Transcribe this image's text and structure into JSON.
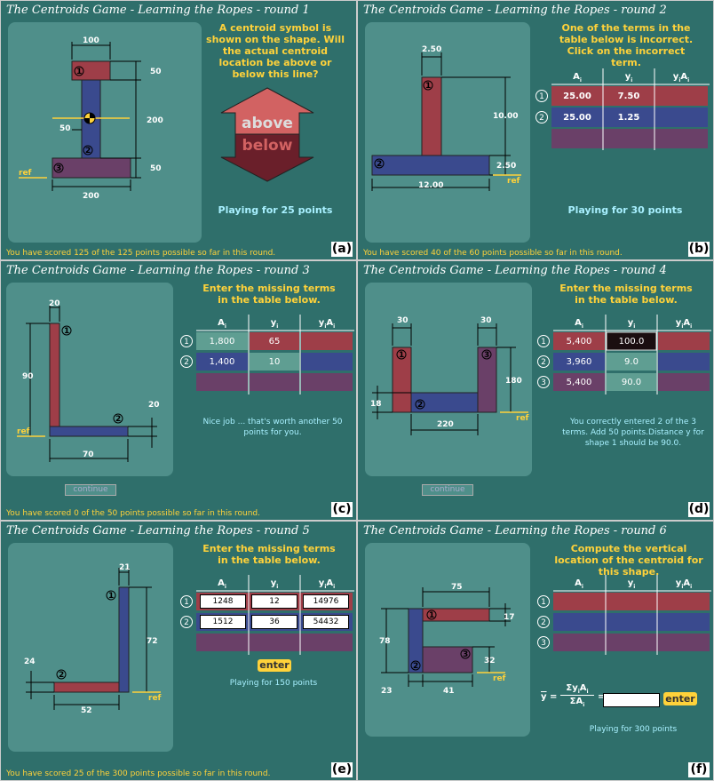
{
  "titles": {
    "a": "The Centroids Game - Learning the Ropes - round 1",
    "b": "The Centroids Game - Learning the Ropes - round 2",
    "c": "The Centroids Game - Learning the Ropes - round 3",
    "d": "The Centroids Game - Learning the Ropes - round 4",
    "e": "The Centroids Game - Learning the Ropes - round 5",
    "f": "The Centroids Game - Learning the Ropes - round 6"
  },
  "letters": {
    "a": "(a)",
    "b": "(b)",
    "c": "(c)",
    "d": "(d)",
    "e": "(e)",
    "f": "(f)"
  },
  "scores": {
    "a": "You have scored 125 of the 125 points possible so far in this round.",
    "b": "You have scored 40 of the 60 points possible so far in this round.",
    "c": "You have scored 0 of the 50 points possible so far in this round.",
    "d": "",
    "e": "You have scored 25 of the 300 points possible so far in this round.",
    "f": ""
  },
  "headers": {
    "A": "A",
    "A_sub": "i",
    "y": "y",
    "y_sub": "i",
    "yA": "y",
    "yA_sub": "i",
    "yA_A": "A",
    "yA_A_sub": "i"
  },
  "ref": "ref",
  "a": {
    "question": "A centroid symbol is shown on the shape. Will the actual centroid location be above or below this line?",
    "above": "above",
    "below": "below",
    "playing": "Playing for 25 points",
    "dims": {
      "w_top": "100",
      "h_top": "50",
      "h_mid": "200",
      "w_mid": "50",
      "h_bot": "50",
      "w_bot": "200"
    },
    "parts": [
      "1",
      "2",
      "3"
    ]
  },
  "b": {
    "question": "One of the terms in the table below is incorrect. Click on the incorrect term.",
    "playing": "Playing for 30 points",
    "dims": {
      "w_top": "2.50",
      "h_mid": "10.00",
      "h_bot": "2.50",
      "w_bot": "12.00"
    },
    "parts": [
      "1",
      "2"
    ],
    "rows": [
      {
        "n": "1",
        "A": "25.00",
        "y": "7.50",
        "yA": ""
      },
      {
        "n": "2",
        "A": "25.00",
        "y": "1.25",
        "yA": ""
      }
    ]
  },
  "c": {
    "question": "Enter the missing terms in the table below.",
    "message": "Nice job ... that's worth another 50 points for you.",
    "continue": "continue",
    "dims": {
      "w_top": "20",
      "h_mid": "90",
      "h_bot": "20",
      "w_bot": "70"
    },
    "parts": [
      "1",
      "2"
    ],
    "rows": [
      {
        "n": "1",
        "A": "1,800",
        "y": "65",
        "yA": ""
      },
      {
        "n": "2",
        "A": "1,400",
        "y": "10",
        "yA": ""
      }
    ]
  },
  "d": {
    "question": "Enter the missing terms in the table below.",
    "message": "You correctly entered 2 of the 3 terms.  Add 50 points.Distance y for shape 1 should be 90.0.",
    "continue": "continue",
    "dims": {
      "w_l": "30",
      "w_r": "30",
      "h_r": "180",
      "h_b": "18",
      "w_b": "220"
    },
    "parts": [
      "1",
      "2",
      "3"
    ],
    "rows": [
      {
        "n": "1",
        "A": "5,400",
        "y": "100.0",
        "yA": ""
      },
      {
        "n": "2",
        "A": "3,960",
        "y": "9.0",
        "yA": ""
      },
      {
        "n": "3",
        "A": "5,400",
        "y": "90.0",
        "yA": ""
      }
    ]
  },
  "e": {
    "question": "Enter the missing terms in the table below.",
    "enter": "enter",
    "playing": "Playing for 150 points",
    "dims": {
      "w_top": "21",
      "h_mid": "72",
      "h_left": "24",
      "w_bot": "52"
    },
    "parts": [
      "1",
      "2"
    ],
    "rows": [
      {
        "n": "1",
        "A": "1248",
        "y": "12",
        "yA": "14976"
      },
      {
        "n": "2",
        "A": "1512",
        "y": "36",
        "yA": "54432"
      }
    ]
  },
  "f": {
    "question": "Compute the vertical location of the centroid for this shape.",
    "enter": "enter",
    "playing": "Playing for 300 points",
    "formula": {
      "ybar": "y",
      "num": "Σy",
      "num_sub": "i",
      "num_A": "A",
      "num_A_sub": "i",
      "den": "ΣA",
      "den_sub": "i",
      "eq": "="
    },
    "dims": {
      "w_top": "75",
      "h_top": "17",
      "h_all": "78",
      "h_bot": "32",
      "w_l": "23",
      "w_b": "41"
    },
    "parts": [
      "1",
      "2",
      "3"
    ],
    "rows": [
      {
        "n": "1"
      },
      {
        "n": "2"
      },
      {
        "n": "3"
      }
    ]
  },
  "colors": {
    "panel": "#2f6f6b",
    "area": "#4f8f8a",
    "red": "#9e3e48",
    "blue": "#3a4a8e",
    "purple": "#6a4068",
    "yellow": "#ffd23a",
    "cyan": "#a8f0ff"
  }
}
